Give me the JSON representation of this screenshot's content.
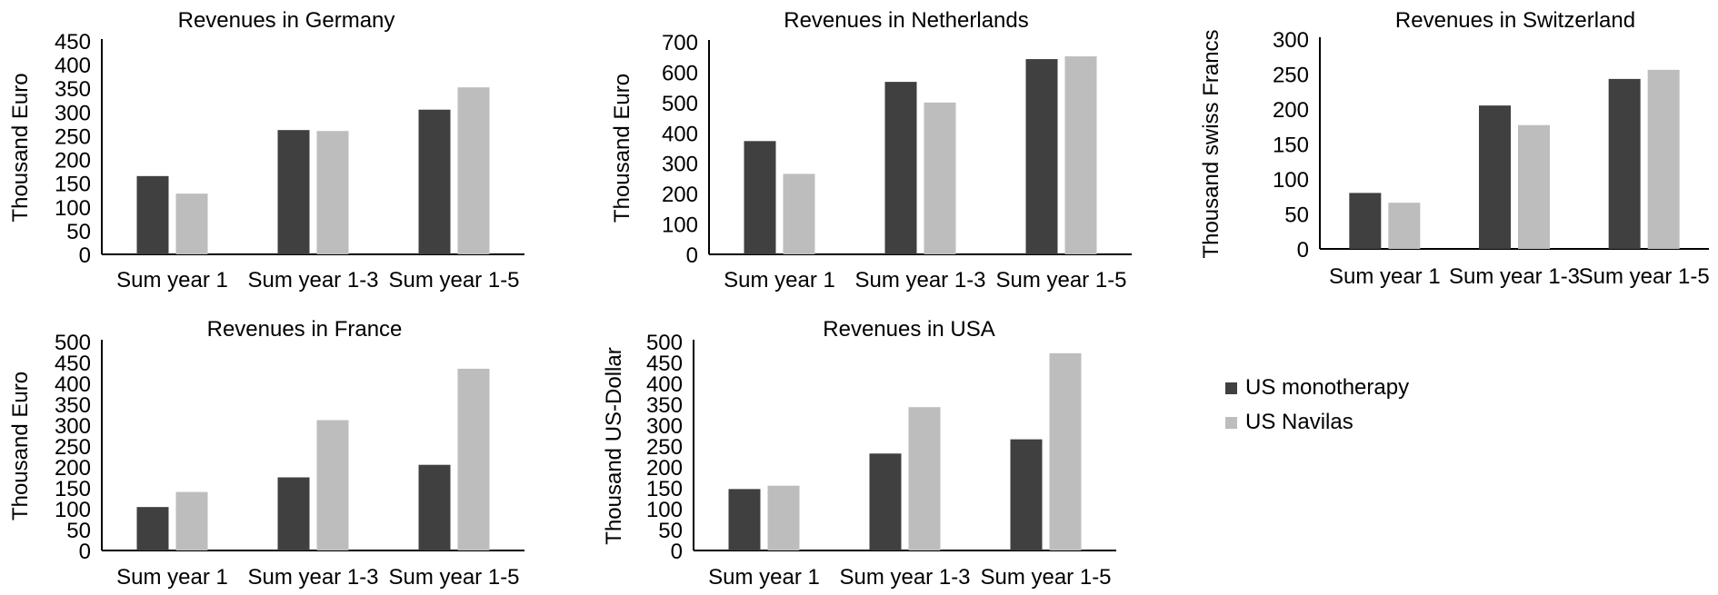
{
  "colors": {
    "series_1": "#404040",
    "series_2": "#bdbdbd",
    "axis": "#000000"
  },
  "legend": {
    "items": [
      {
        "label": "US monotherapy",
        "color": "#404040"
      },
      {
        "label": "US Navilas",
        "color": "#bdbdbd"
      }
    ]
  },
  "chart_data": [
    {
      "type": "bar",
      "title": "Revenues in Germany",
      "ylabel": "Thousand Euro",
      "categories": [
        "Sum year 1",
        "Sum year 1-3",
        "Sum year 1-5"
      ],
      "series": [
        {
          "name": "US monotherapy",
          "values": [
            165,
            262,
            305
          ]
        },
        {
          "name": "US Navilas",
          "values": [
            128,
            260,
            352
          ]
        }
      ],
      "ylim": [
        0,
        450
      ],
      "yticks": [
        "0",
        "50",
        "100",
        "150",
        "200",
        "250",
        "300",
        "350",
        "400",
        "450"
      ],
      "grid": false,
      "legend": "none"
    },
    {
      "type": "bar",
      "title": "Revenues in Netherlands",
      "ylabel": "Thousand Euro",
      "categories": [
        "Sum year 1",
        "Sum year 1-3",
        "Sum year 1-5"
      ],
      "series": [
        {
          "name": "US monotherapy",
          "values": [
            373,
            568,
            643
          ]
        },
        {
          "name": "US Navilas",
          "values": [
            265,
            500,
            652
          ]
        }
      ],
      "ylim": [
        0,
        700
      ],
      "yticks": [
        "0",
        "100",
        "200",
        "300",
        "400",
        "500",
        "600",
        "700"
      ],
      "grid": false,
      "legend": "none"
    },
    {
      "type": "bar",
      "title": "Revenues in Switzerland",
      "ylabel": "Thousand swiss Francs",
      "categories": [
        "Sum year 1",
        "Sum year 1-3",
        "Sum year 1-5"
      ],
      "series": [
        {
          "name": "US monotherapy",
          "values": [
            80,
            205,
            243
          ]
        },
        {
          "name": "US Navilas",
          "values": [
            66,
            177,
            256
          ]
        }
      ],
      "ylim": [
        0,
        300
      ],
      "yticks": [
        "0",
        "50",
        "100",
        "150",
        "200",
        "250",
        "300"
      ],
      "grid": false,
      "legend": "none"
    },
    {
      "type": "bar",
      "title": "Revenues in France",
      "ylabel": "Thousand Euro",
      "categories": [
        "Sum year 1",
        "Sum year 1-3",
        "Sum year 1-5"
      ],
      "series": [
        {
          "name": "US monotherapy",
          "values": [
            104,
            175,
            205
          ]
        },
        {
          "name": "US Navilas",
          "values": [
            140,
            312,
            435
          ]
        }
      ],
      "ylim": [
        0,
        500
      ],
      "yticks": [
        "0",
        "50",
        "100",
        "150",
        "200",
        "250",
        "300",
        "350",
        "400",
        "450",
        "500"
      ],
      "grid": false,
      "legend": "none"
    },
    {
      "type": "bar",
      "title": "Revenues in USA",
      "ylabel": "Thousand US-Dollar",
      "categories": [
        "Sum year 1",
        "Sum year 1-3",
        "Sum year 1-5"
      ],
      "series": [
        {
          "name": "US monotherapy",
          "values": [
            147,
            232,
            266
          ]
        },
        {
          "name": "US Navilas",
          "values": [
            155,
            343,
            472
          ]
        }
      ],
      "ylim": [
        0,
        500
      ],
      "yticks": [
        "0",
        "50",
        "100",
        "150",
        "200",
        "250",
        "300",
        "350",
        "400",
        "450",
        "500"
      ],
      "grid": false,
      "legend": "right"
    }
  ]
}
